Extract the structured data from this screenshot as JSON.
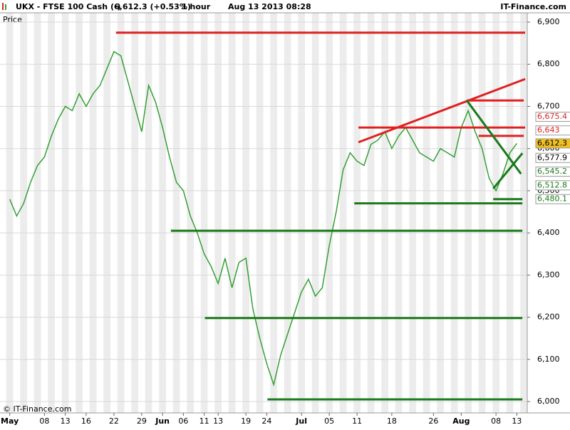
{
  "chart_data": {
    "type": "line",
    "title": "UKX - FTSE 100 Cash (-)",
    "last_price": "6,612.3 (+0.53%)",
    "interval": "1 hour",
    "timestamp": "Aug 13 2013 08:28",
    "brand": "IT-Finance.com",
    "copyright": "© IT-Finance.com",
    "y_label": "Price",
    "grid": true,
    "x": [
      0,
      1,
      2,
      3,
      4,
      5,
      6,
      7,
      8,
      9,
      10,
      11,
      12,
      13,
      14,
      15,
      16,
      17,
      18,
      19,
      20,
      21,
      22,
      23,
      24,
      25,
      26,
      27,
      28,
      29,
      30,
      31,
      32,
      33,
      34,
      35,
      36,
      37,
      38,
      39,
      40,
      41,
      42,
      43,
      44,
      45,
      46,
      47,
      48,
      49,
      50,
      51,
      52,
      53,
      54,
      55,
      56,
      57,
      58,
      59,
      60,
      61,
      62,
      63,
      64,
      65,
      66,
      67,
      68,
      69,
      70,
      71,
      72,
      73
    ],
    "series": [
      {
        "name": "UKX",
        "color": "#33a033",
        "values": [
          6480,
          6440,
          6470,
          6520,
          6560,
          6580,
          6630,
          6670,
          6700,
          6690,
          6730,
          6700,
          6730,
          6750,
          6790,
          6830,
          6820,
          6760,
          6700,
          6640,
          6750,
          6710,
          6650,
          6580,
          6520,
          6500,
          6440,
          6400,
          6350,
          6320,
          6280,
          6340,
          6270,
          6330,
          6340,
          6220,
          6150,
          6090,
          6040,
          6110,
          6160,
          6210,
          6260,
          6290,
          6250,
          6270,
          6370,
          6450,
          6550,
          6590,
          6570,
          6560,
          6610,
          6620,
          6640,
          6600,
          6630,
          6650,
          6620,
          6590,
          6580,
          6570,
          6600,
          6590,
          6580,
          6650,
          6690,
          6640,
          6600,
          6530,
          6500,
          6540,
          6590,
          6612.3
        ]
      }
    ],
    "xlim": [
      -1.4,
      74.5
    ],
    "xticks": [
      {
        "value": 0,
        "label": "May"
      },
      {
        "value": 5,
        "label": "08"
      },
      {
        "value": 8,
        "label": "13"
      },
      {
        "value": 11,
        "label": "16"
      },
      {
        "value": 15,
        "label": "22"
      },
      {
        "value": 19,
        "label": "29"
      },
      {
        "value": 22,
        "label": "Jun"
      },
      {
        "value": 25,
        "label": "06"
      },
      {
        "value": 28,
        "label": "11"
      },
      {
        "value": 30,
        "label": "13"
      },
      {
        "value": 34,
        "label": "19"
      },
      {
        "value": 37,
        "label": "24"
      },
      {
        "value": 42,
        "label": "Jul"
      },
      {
        "value": 46,
        "label": "05"
      },
      {
        "value": 50,
        "label": "11"
      },
      {
        "value": 55,
        "label": "18"
      },
      {
        "value": 61,
        "label": "26"
      },
      {
        "value": 65,
        "label": "Aug"
      },
      {
        "value": 70,
        "label": "08"
      },
      {
        "value": 73,
        "label": "13"
      }
    ],
    "ylim": [
      5973,
      6922
    ],
    "yticks": [
      {
        "value": 6000,
        "label": "6,000"
      },
      {
        "value": 6100,
        "label": "6,100"
      },
      {
        "value": 6200,
        "label": "6,200"
      },
      {
        "value": 6300,
        "label": "6,300"
      },
      {
        "value": 6400,
        "label": "6,400"
      },
      {
        "value": 6500,
        "label": "6,500"
      },
      {
        "value": 6600,
        "label": "6,600"
      },
      {
        "value": 6700,
        "label": "6,700"
      },
      {
        "value": 6800,
        "label": "6,800"
      },
      {
        "value": 6900,
        "label": "6,900"
      }
    ],
    "trend_lines": [
      {
        "x": [
          15.3,
          74.2
        ],
        "y": [
          6875,
          6875
        ],
        "color": "#e02020"
      },
      {
        "x": [
          50.2,
          74.2
        ],
        "y": [
          6650,
          6650
        ],
        "color": "#e02020"
      },
      {
        "x": [
          65.8,
          74.0
        ],
        "y": [
          6714,
          6714
        ],
        "color": "#e02020"
      },
      {
        "x": [
          50.2,
          74.2
        ],
        "y": [
          6615,
          6765
        ],
        "color": "#e02020"
      },
      {
        "x": [
          67.5,
          74.0
        ],
        "y": [
          6630,
          6630
        ],
        "color": "#e02020"
      },
      {
        "x": [
          23.2,
          73.8
        ],
        "y": [
          6405,
          6405
        ],
        "color": "#1a7a1a"
      },
      {
        "x": [
          28.1,
          73.8
        ],
        "y": [
          6198,
          6198
        ],
        "color": "#1a7a1a"
      },
      {
        "x": [
          37.1,
          73.8
        ],
        "y": [
          6005,
          6005
        ],
        "color": "#1a7a1a"
      },
      {
        "x": [
          49.6,
          73.8
        ],
        "y": [
          6470,
          6470
        ],
        "color": "#1a7a1a"
      },
      {
        "x": [
          69.6,
          73.8
        ],
        "y": [
          6480,
          6480
        ],
        "color": "#1a7a1a"
      },
      {
        "x": [
          65.8,
          73.6
        ],
        "y": [
          6714,
          6540
        ],
        "color": "#1a7a1a"
      },
      {
        "x": [
          69.6,
          73.8
        ],
        "y": [
          6505,
          6589
        ],
        "color": "#1a7a1a"
      }
    ],
    "price_labels": [
      {
        "value": 6675.4,
        "label": "6,675.4",
        "color": "#e02020",
        "bg": "#ffffff"
      },
      {
        "value": 6643,
        "label": "6,643",
        "color": "#e02020",
        "bg": "#ffffff"
      },
      {
        "value": 6612.3,
        "label": "6,612.3",
        "color": "#000000",
        "bg": "#f0c020"
      },
      {
        "value": 6577.9,
        "label": "6,577.9",
        "color": "#000000",
        "bg": "#ffffff"
      },
      {
        "value": 6545.2,
        "label": "6,545.2",
        "color": "#1a7a1a",
        "bg": "#ffffff"
      },
      {
        "value": 6512.8,
        "label": "6,512.8",
        "color": "#1a7a1a",
        "bg": "#ffffff"
      },
      {
        "value": 6480.1,
        "label": "6,480.1",
        "color": "#1a7a1a",
        "bg": "#ffffff"
      }
    ]
  }
}
